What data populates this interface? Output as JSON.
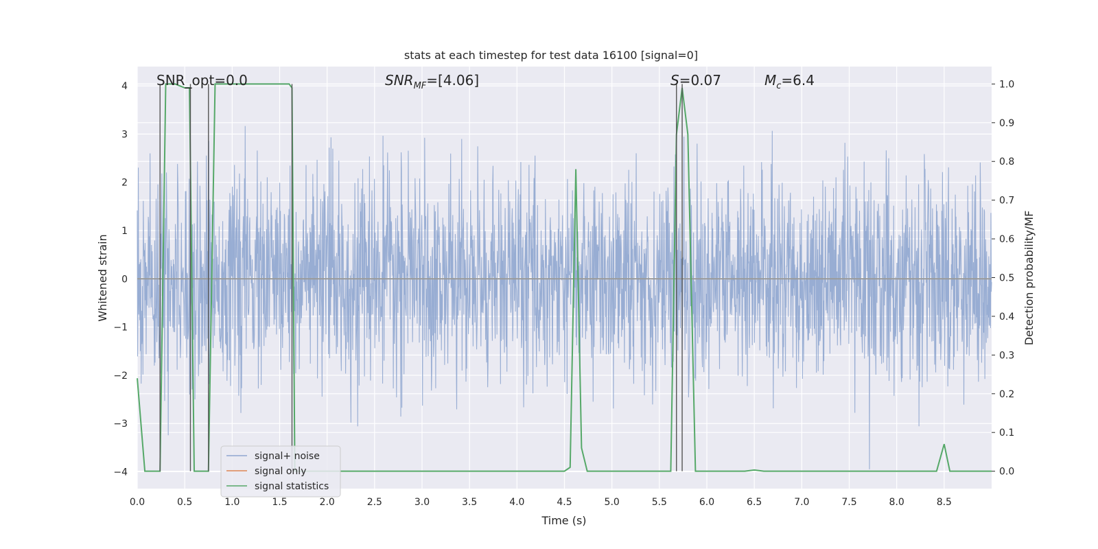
{
  "chart_data": {
    "type": "line",
    "title": "stats at each timestep for test data 16100 [signal=0]",
    "xlabel": "Time (s)",
    "ylabel_left": "Whitened strain",
    "ylabel_right": "Detection probability/MF",
    "xlim": [
      0,
      9.0
    ],
    "ylim_left": [
      -4.35,
      4.4
    ],
    "ylim_right": [
      -0.045,
      1.045
    ],
    "x_ticks": [
      "0.0",
      "0.5",
      "1.0",
      "1.5",
      "2.0",
      "2.5",
      "3.0",
      "3.5",
      "4.0",
      "4.5",
      "5.0",
      "5.5",
      "6.0",
      "6.5",
      "7.0",
      "7.5",
      "8.0",
      "8.5"
    ],
    "y_left_ticks": [
      "−4",
      "−3",
      "−2",
      "−1",
      "0",
      "1",
      "2",
      "3",
      "4"
    ],
    "y_right_ticks": [
      "0.0",
      "0.1",
      "0.2",
      "0.3",
      "0.4",
      "0.5",
      "0.6",
      "0.7",
      "0.8",
      "0.9",
      "1.0"
    ],
    "grid": true,
    "legend_position": "lower-left",
    "annotations": {
      "snr_opt": "SNR_opt=0.0",
      "snr_mf_main": "SNR",
      "snr_mf_sub": "MF",
      "snr_mf_value": "=[4.06]",
      "s_label": "S",
      "s_value": "=0.07",
      "mc_main": "M",
      "mc_sub": "c",
      "mc_value": "=6.4"
    },
    "series": [
      {
        "name": "signal+ noise",
        "color": "#8fa6cf",
        "description": "whitened strain noise, roughly Gaussian with std ~1"
      },
      {
        "name": "signal only",
        "color": "#dd8452",
        "x": [
          0,
          9.0
        ],
        "y": [
          0,
          0
        ]
      },
      {
        "name": "signal statistics",
        "color": "#55a868",
        "axis": "right",
        "x": [
          0.0,
          0.08,
          0.12,
          0.24,
          0.3,
          0.4,
          0.5,
          0.55,
          0.6,
          0.7,
          0.75,
          0.82,
          1.0,
          1.2,
          1.4,
          1.6,
          1.63,
          1.66,
          1.72,
          1.8,
          2.0,
          3.0,
          4.0,
          4.5,
          4.56,
          4.62,
          4.68,
          4.74,
          4.8,
          5.0,
          5.5,
          5.62,
          5.68,
          5.74,
          5.8,
          5.88,
          6.0,
          6.4,
          6.5,
          6.6,
          7.0,
          8.0,
          8.42,
          8.5,
          8.56,
          8.7,
          9.0
        ],
        "y": [
          0.24,
          0.0,
          0.0,
          0.0,
          1.0,
          1.0,
          0.99,
          0.99,
          0.0,
          0.0,
          0.0,
          1.0,
          1.0,
          1.0,
          1.0,
          1.0,
          0.99,
          0.0,
          0.0,
          0.0,
          0.0,
          0.0,
          0.0,
          0.0,
          0.01,
          0.78,
          0.06,
          0.0,
          0.0,
          0.0,
          0.0,
          0.0,
          0.87,
          0.99,
          0.87,
          0.0,
          0.0,
          0.0,
          0.003,
          0.0,
          0.0,
          0.0,
          0.0,
          0.07,
          0.0,
          0.0,
          0.0
        ]
      }
    ],
    "vertical_lines_x": [
      0.24,
      0.56,
      0.75,
      1.63,
      5.68,
      5.74
    ],
    "colors": {
      "axes_bg": "#eaeaf2",
      "grid": "#ffffff",
      "vline": "#555555",
      "zero_line": "#9a9a9a"
    }
  }
}
